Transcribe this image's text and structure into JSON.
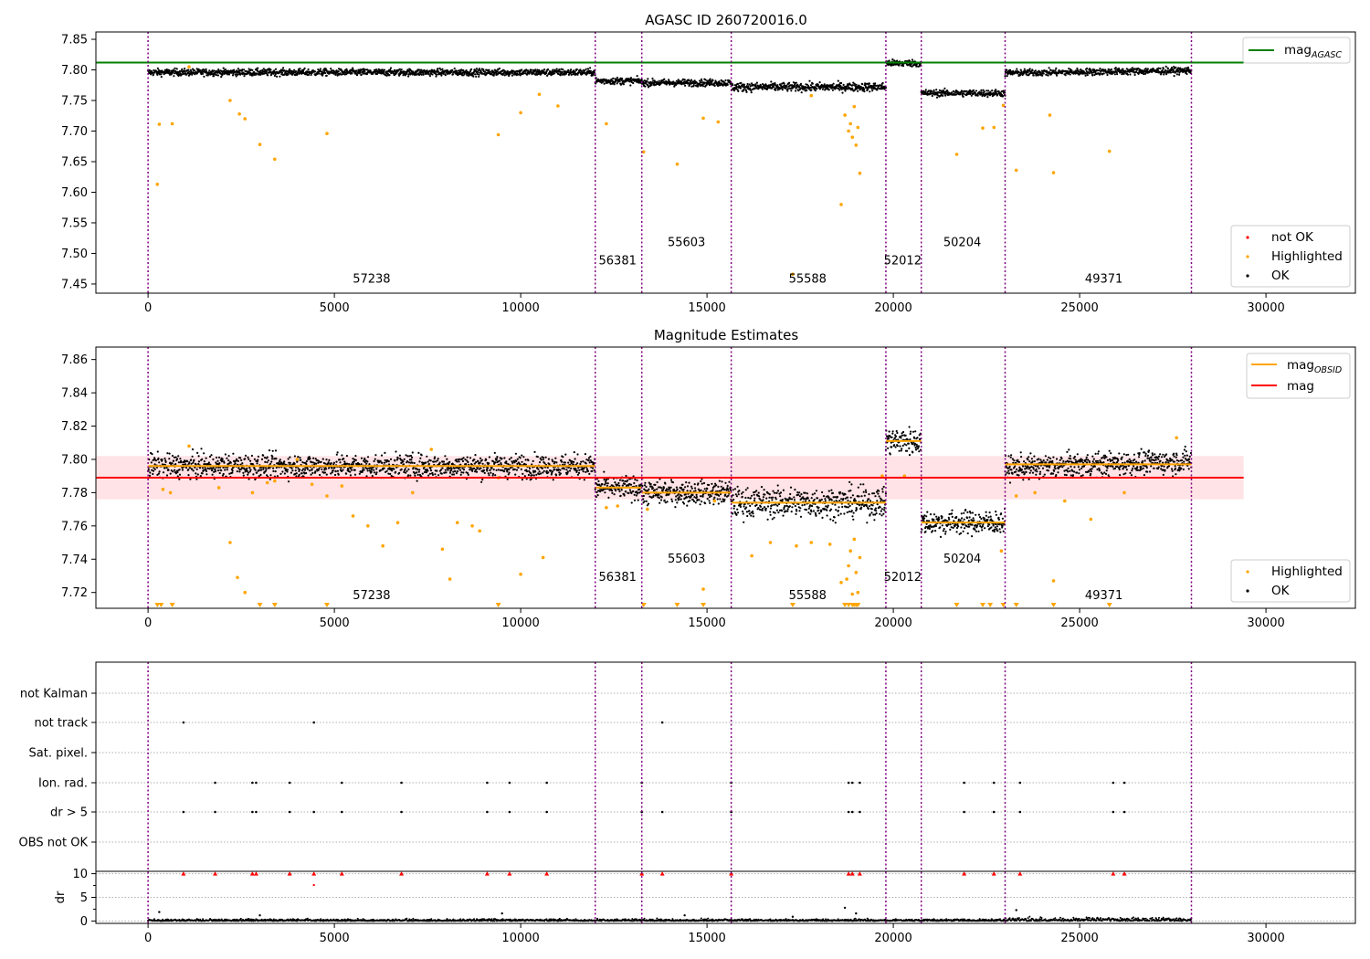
{
  "chart_data": [
    {
      "type": "scatter",
      "title": "AGASC ID 260720016.0",
      "xlim": [
        -1400,
        32400
      ],
      "ylim": [
        7.435,
        7.862
      ],
      "xticks": [
        0,
        5000,
        10000,
        15000,
        20000,
        25000,
        30000
      ],
      "yticks": [
        7.45,
        7.5,
        7.55,
        7.6,
        7.65,
        7.7,
        7.75,
        7.8,
        7.85
      ],
      "hline": {
        "name": "mag",
        "sub": "AGASC",
        "y": 7.812,
        "x_end": 29400,
        "color": "#008000"
      },
      "segments": [
        {
          "obsid": "57238",
          "x0": 0,
          "x1": 12000,
          "y": 7.796,
          "label_x": 6000,
          "label_y": 7.452
        },
        {
          "obsid": "56381",
          "x0": 12000,
          "x1": 13250,
          "y": 7.782,
          "label_x": 12600,
          "label_y": 7.482
        },
        {
          "obsid": "55603",
          "x0": 13250,
          "x1": 15650,
          "y": 7.779,
          "label_x": 14450,
          "label_y": 7.512
        },
        {
          "obsid": "55588",
          "x0": 15650,
          "x1": 19800,
          "y": 7.772,
          "label_x": 17700,
          "label_y": 7.452
        },
        {
          "obsid": "52012",
          "x0": 19800,
          "x1": 20750,
          "y": 7.811,
          "label_x": 20250,
          "label_y": 7.482
        },
        {
          "obsid": "50204",
          "x0": 20750,
          "x1": 23000,
          "y": 7.762,
          "label_x": 21850,
          "label_y": 7.512
        },
        {
          "obsid": "49371",
          "x0": 23000,
          "x1": 28000,
          "y": 7.797,
          "label_x": 25650,
          "label_y": 7.452
        }
      ],
      "boundaries": [
        0,
        12000,
        13250,
        15650,
        19800,
        20750,
        23000,
        28000
      ],
      "highlighted": [
        [
          250,
          7.613
        ],
        [
          300,
          7.711
        ],
        [
          650,
          7.712
        ],
        [
          1100,
          7.805
        ],
        [
          2200,
          7.75
        ],
        [
          2450,
          7.728
        ],
        [
          2600,
          7.72
        ],
        [
          3000,
          7.678
        ],
        [
          3400,
          7.654
        ],
        [
          4800,
          7.696
        ],
        [
          9400,
          7.694
        ],
        [
          10000,
          7.73
        ],
        [
          10500,
          7.76
        ],
        [
          11000,
          7.741
        ],
        [
          12300,
          7.712
        ],
        [
          13300,
          7.666
        ],
        [
          14200,
          7.646
        ],
        [
          14900,
          7.721
        ],
        [
          15300,
          7.715
        ],
        [
          17300,
          7.466
        ],
        [
          17800,
          7.758
        ],
        [
          18600,
          7.58
        ],
        [
          18700,
          7.726
        ],
        [
          18800,
          7.7
        ],
        [
          18850,
          7.712
        ],
        [
          18900,
          7.69
        ],
        [
          18950,
          7.74
        ],
        [
          19000,
          7.677
        ],
        [
          19050,
          7.706
        ],
        [
          19100,
          7.631
        ],
        [
          21700,
          7.662
        ],
        [
          22400,
          7.705
        ],
        [
          22700,
          7.706
        ],
        [
          22950,
          7.742
        ],
        [
          23300,
          7.636
        ],
        [
          24200,
          7.726
        ],
        [
          24300,
          7.632
        ],
        [
          25800,
          7.667
        ]
      ],
      "legend": [
        "not OK",
        "Highlighted",
        "OK"
      ]
    },
    {
      "type": "scatter",
      "title": "Magnitude Estimates",
      "xlim": [
        -1400,
        32400
      ],
      "ylim": [
        7.7105,
        7.8675
      ],
      "xticks": [
        0,
        5000,
        10000,
        15000,
        20000,
        25000,
        30000
      ],
      "yticks": [
        7.72,
        7.74,
        7.76,
        7.78,
        7.8,
        7.82,
        7.84,
        7.86
      ],
      "mag_line": {
        "name": "mag",
        "y": 7.789,
        "x_start": -1400,
        "x_end": 29400,
        "band": [
          7.776,
          7.802
        ],
        "color": "#ff0000"
      },
      "obsid_line": {
        "name": "mag",
        "sub": "OBSID",
        "color": "#ffa500"
      },
      "segments": [
        {
          "obsid": "57238",
          "x0": 0,
          "x1": 12000,
          "y": 7.796,
          "label_x": 6000,
          "label_y": 7.716
        },
        {
          "obsid": "56381",
          "x0": 12000,
          "x1": 13250,
          "y": 7.783,
          "label_x": 12600,
          "label_y": 7.727
        },
        {
          "obsid": "55603",
          "x0": 13250,
          "x1": 15650,
          "y": 7.78,
          "label_x": 14450,
          "label_y": 7.738
        },
        {
          "obsid": "55588",
          "x0": 15650,
          "x1": 19800,
          "y": 7.774,
          "label_x": 17700,
          "label_y": 7.716
        },
        {
          "obsid": "52012",
          "x0": 19800,
          "x1": 20750,
          "y": 7.811,
          "label_x": 20250,
          "label_y": 7.727
        },
        {
          "obsid": "50204",
          "x0": 20750,
          "x1": 23000,
          "y": 7.762,
          "label_x": 21850,
          "label_y": 7.738
        },
        {
          "obsid": "49371",
          "x0": 23000,
          "x1": 28000,
          "y": 7.797,
          "label_x": 25650,
          "label_y": 7.716
        }
      ],
      "boundaries": [
        0,
        12000,
        13250,
        15650,
        19800,
        20750,
        23000,
        28000
      ],
      "highlighted": [
        [
          400,
          7.782
        ],
        [
          600,
          7.78
        ],
        [
          1100,
          7.808
        ],
        [
          1900,
          7.783
        ],
        [
          2200,
          7.75
        ],
        [
          2400,
          7.729
        ],
        [
          2600,
          7.72
        ],
        [
          2800,
          7.78
        ],
        [
          3200,
          7.786
        ],
        [
          3400,
          7.787
        ],
        [
          4000,
          7.8
        ],
        [
          4400,
          7.785
        ],
        [
          4800,
          7.778
        ],
        [
          5200,
          7.784
        ],
        [
          5500,
          7.766
        ],
        [
          5900,
          7.76
        ],
        [
          6300,
          7.748
        ],
        [
          6700,
          7.762
        ],
        [
          7100,
          7.78
        ],
        [
          7600,
          7.806
        ],
        [
          7900,
          7.746
        ],
        [
          8100,
          7.728
        ],
        [
          8300,
          7.762
        ],
        [
          8700,
          7.76
        ],
        [
          8900,
          7.757
        ],
        [
          9400,
          7.789
        ],
        [
          10000,
          7.731
        ],
        [
          10600,
          7.741
        ],
        [
          12300,
          7.771
        ],
        [
          12600,
          7.772
        ],
        [
          13400,
          7.77
        ],
        [
          14900,
          7.722
        ],
        [
          15200,
          7.775
        ],
        [
          16200,
          7.742
        ],
        [
          16700,
          7.75
        ],
        [
          17400,
          7.748
        ],
        [
          17800,
          7.75
        ],
        [
          18300,
          7.749
        ],
        [
          18600,
          7.726
        ],
        [
          18750,
          7.728
        ],
        [
          18800,
          7.736
        ],
        [
          18850,
          7.745
        ],
        [
          18900,
          7.719
        ],
        [
          18950,
          7.752
        ],
        [
          19000,
          7.732
        ],
        [
          19050,
          7.72
        ],
        [
          19100,
          7.741
        ],
        [
          19700,
          7.79
        ],
        [
          20300,
          7.79
        ],
        [
          22900,
          7.745
        ],
        [
          23300,
          7.778
        ],
        [
          23800,
          7.78
        ],
        [
          24300,
          7.727
        ],
        [
          24600,
          7.775
        ],
        [
          25300,
          7.764
        ],
        [
          26200,
          7.78
        ],
        [
          27600,
          7.813
        ]
      ],
      "lower_markers": [
        250,
        350,
        650,
        3000,
        3400,
        4800,
        9400,
        13300,
        14200,
        14900,
        17300,
        18700,
        18800,
        18900,
        18950,
        19000,
        19050,
        21700,
        22400,
        22600,
        22950,
        23300,
        24300,
        25800
      ],
      "legend": [
        "Highlighted",
        "OK"
      ]
    },
    {
      "type": "scatter",
      "title": "",
      "xlim": [
        -1400,
        32400
      ],
      "xticks": [
        0,
        5000,
        10000,
        15000,
        20000,
        25000,
        30000
      ],
      "flag_rows": [
        "not Kalman",
        "not track",
        "Sat. pixel.",
        "Ion. rad.",
        "dr > 5",
        "OBS not OK"
      ],
      "flags": {
        "not track": [
          950,
          4450,
          13800
        ],
        "Ion. rad.": [
          1800,
          2800,
          2900,
          3800,
          5200,
          6800,
          9100,
          9700,
          10700,
          13250,
          15650,
          18800,
          18900,
          19100,
          21900,
          22700,
          23400,
          25900,
          26200
        ],
        "dr > 5": [
          950,
          1800,
          2800,
          2900,
          3800,
          4450,
          5200,
          6800,
          9100,
          9700,
          10700,
          13250,
          13800,
          15650,
          18800,
          18900,
          19100,
          21900,
          22700,
          23400,
          25900,
          26200
        ]
      },
      "dr": {
        "ylim": [
          -0.5,
          10.5
        ],
        "yticks": [
          0,
          5,
          10
        ],
        "ylabel": "dr",
        "clipped_at_10": [
          950,
          1800,
          2800,
          2900,
          3800,
          4450,
          5200,
          6800,
          9100,
          9700,
          10700,
          13250,
          13800,
          15650,
          18800,
          18900,
          19100,
          21900,
          22700,
          23400,
          25900,
          26200
        ],
        "outliers": [
          [
            300,
            1.9
          ],
          [
            4450,
            7.6
          ],
          [
            9500,
            1.6
          ],
          [
            17300,
            0.9
          ],
          [
            18700,
            2.8
          ],
          [
            19000,
            1.6
          ],
          [
            23300,
            2.3
          ],
          [
            14400,
            1.2
          ],
          [
            3000,
            1.2
          ]
        ]
      },
      "boundaries": [
        0,
        12000,
        13250,
        15650,
        19800,
        20750,
        23000,
        28000
      ]
    }
  ],
  "legends": {
    "top_line": {
      "main": "mag",
      "sub": "AGASC"
    },
    "top_points": [
      "not OK",
      "Highlighted",
      "OK"
    ],
    "mid_lines": [
      {
        "main": "mag",
        "sub": "OBSID"
      },
      {
        "main": "mag",
        "sub": ""
      }
    ],
    "mid_points": [
      "Highlighted",
      "OK"
    ]
  },
  "colors": {
    "ok": "#000000",
    "highlighted": "#ffa500",
    "not_ok": "#ff0000",
    "agasc": "#008000",
    "boundary": "#800080",
    "band": "#ffc0c8"
  }
}
